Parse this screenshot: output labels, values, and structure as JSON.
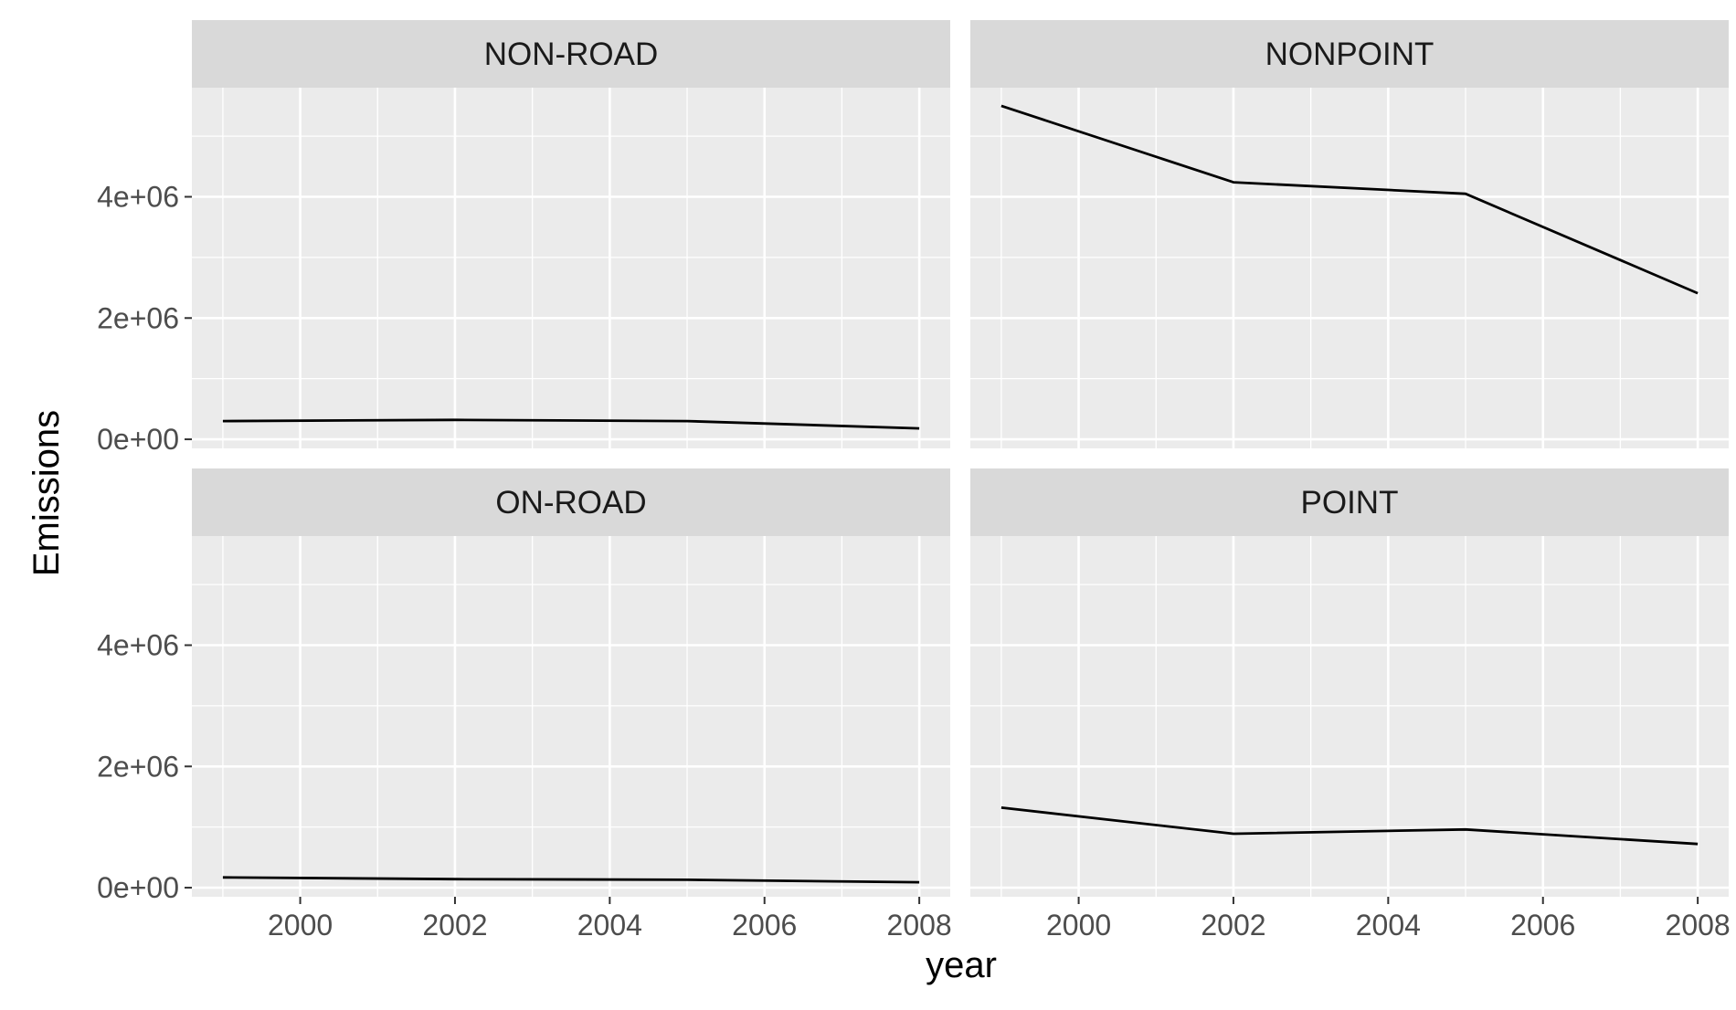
{
  "chart_data": {
    "type": "line",
    "facet_layout": "2x2 grid, shared x and y axes",
    "xlabel": "year",
    "ylabel": "Emissions",
    "xlim": [
      1998.6,
      2008.4
    ],
    "ylim": [
      -150000,
      5800000
    ],
    "x_ticks": [
      2000,
      2002,
      2004,
      2006,
      2008
    ],
    "x_tick_labels": [
      "2000",
      "2002",
      "2004",
      "2006",
      "2008"
    ],
    "y_ticks": [
      0,
      2000000,
      4000000
    ],
    "y_tick_labels": [
      "0e+00",
      "2e+06",
      "4e+06"
    ],
    "grid": true,
    "colors": {
      "panel_background": "#ebebeb",
      "strip_background": "#d9d9d9",
      "grid": "#ffffff",
      "line": "#000000"
    },
    "facets": [
      {
        "name": "NON-ROAD",
        "x": [
          1999,
          2002,
          2005,
          2008
        ],
        "y": [
          300000,
          320000,
          300000,
          180000
        ]
      },
      {
        "name": "NONPOINT",
        "x": [
          1999,
          2002,
          2005,
          2008
        ],
        "y": [
          5500000,
          4240000,
          4050000,
          2410000
        ]
      },
      {
        "name": "ON-ROAD",
        "x": [
          1999,
          2002,
          2005,
          2008
        ],
        "y": [
          170000,
          140000,
          130000,
          90000
        ]
      },
      {
        "name": "POINT",
        "x": [
          1999,
          2002,
          2005,
          2008
        ],
        "y": [
          1320000,
          890000,
          960000,
          720000
        ]
      }
    ]
  }
}
